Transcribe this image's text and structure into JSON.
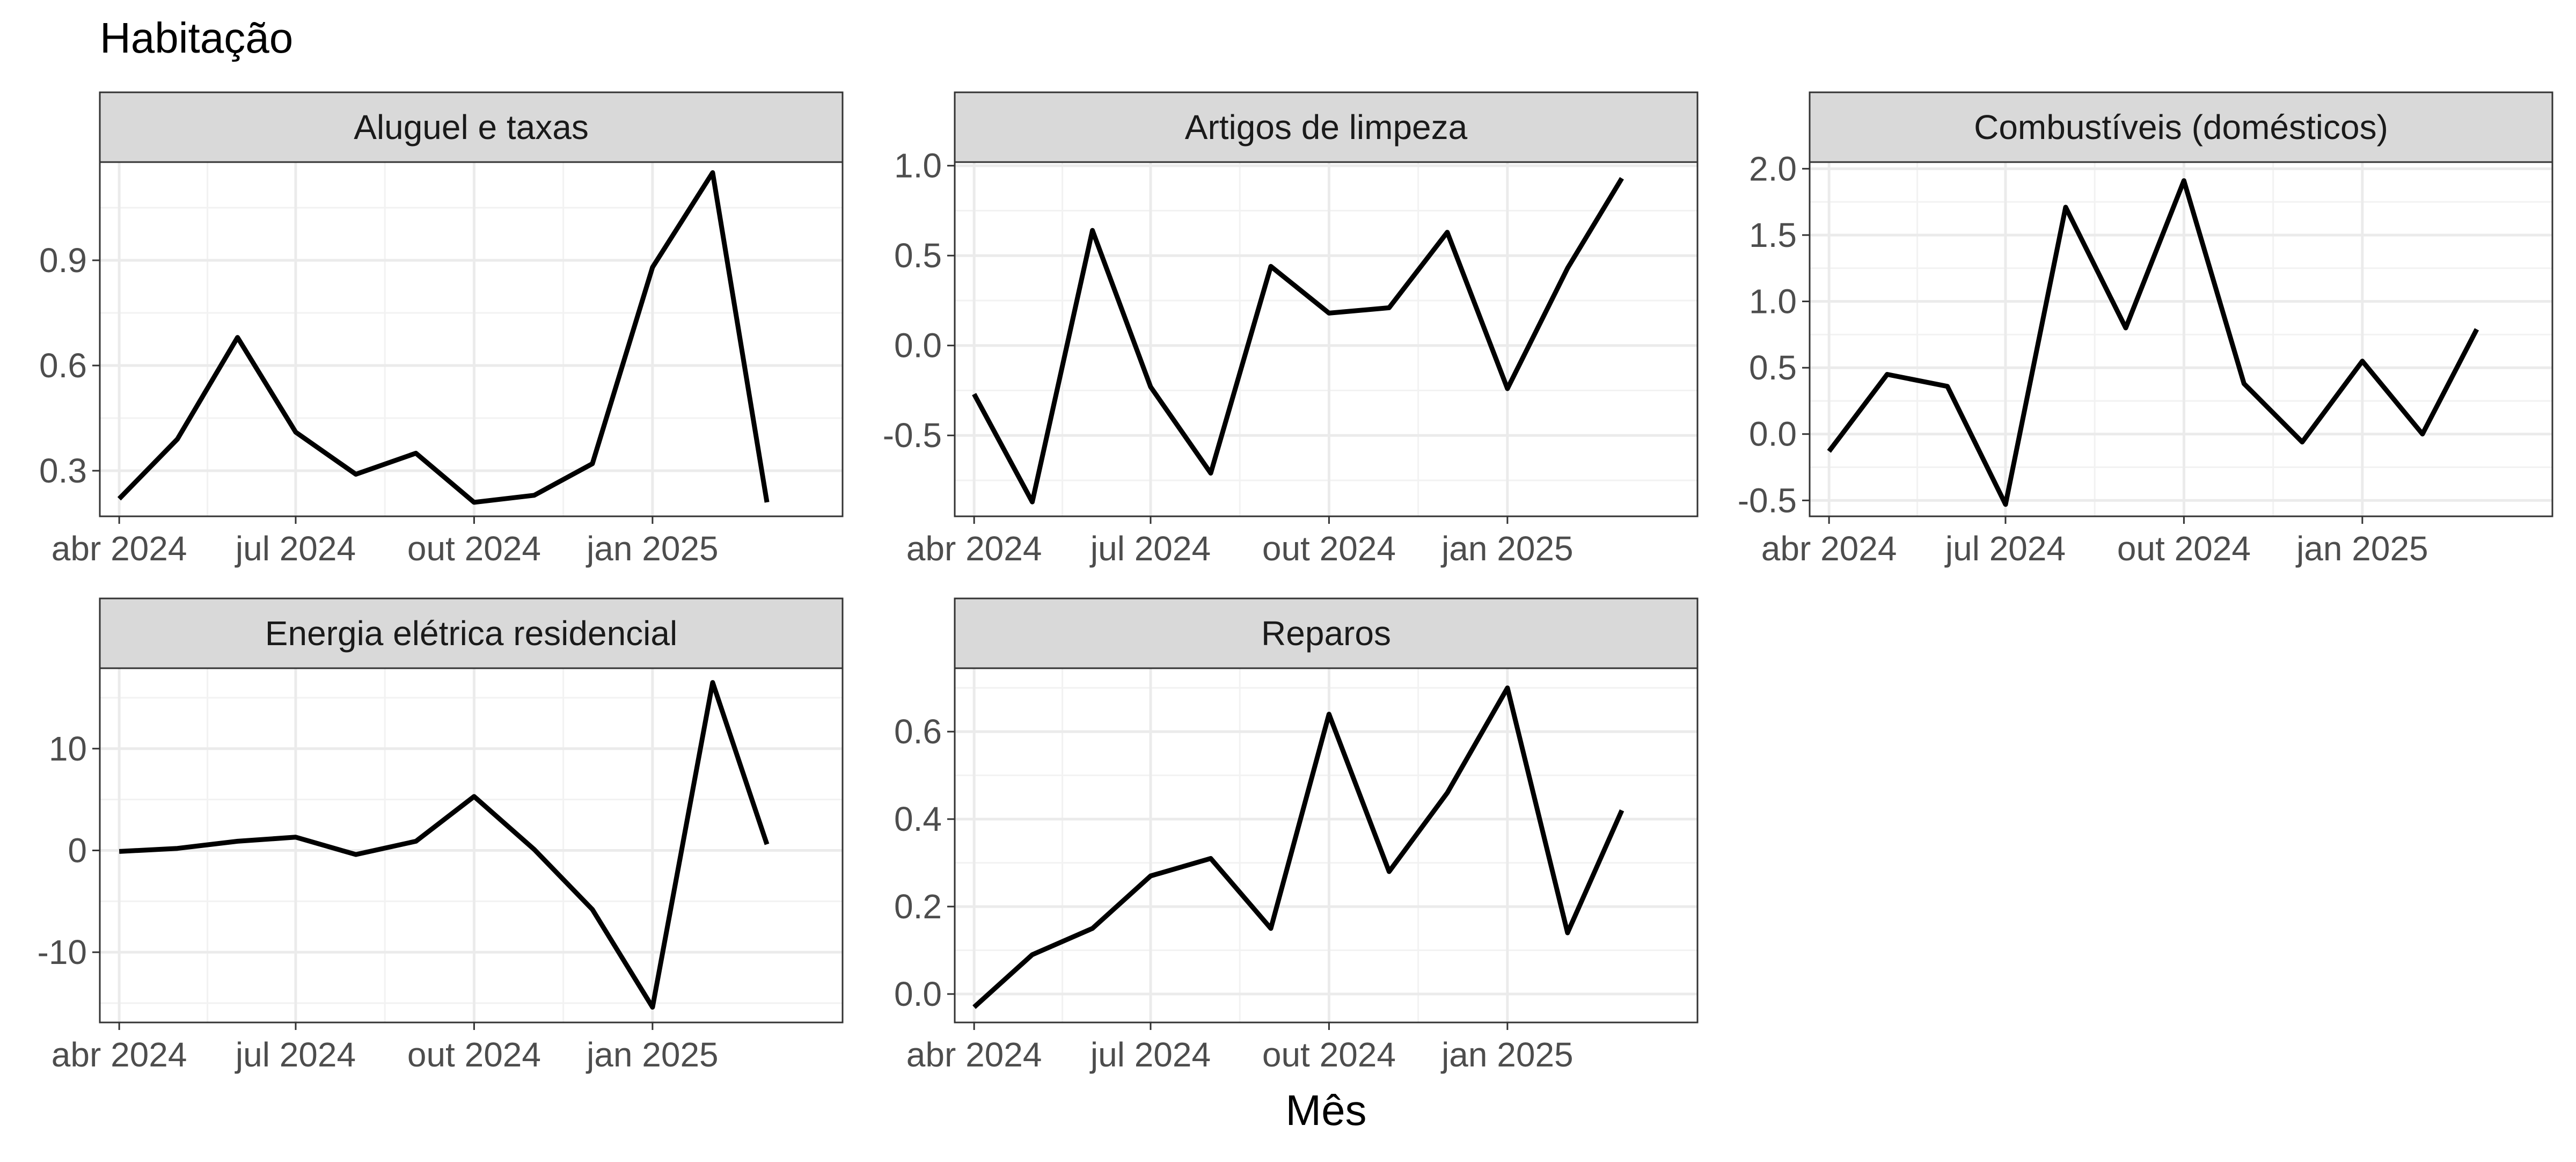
{
  "page": {
    "title": "Habitação",
    "xlabel": "Mês"
  },
  "chart_data": {
    "type": "line",
    "title": "Habitação",
    "xlabel": "Mês",
    "ylabel": "",
    "x": [
      "2024-04",
      "2024-05",
      "2024-06",
      "2024-07",
      "2024-08",
      "2024-09",
      "2024-10",
      "2024-11",
      "2024-12",
      "2025-01",
      "2025-02",
      "2025-03"
    ],
    "x_ticks": [
      "2024-04",
      "2024-07",
      "2024-10",
      "2025-01"
    ],
    "x_tick_labels": [
      "abr 2024",
      "jul 2024",
      "out 2024",
      "jan 2025"
    ],
    "x_range": [
      "2024-03-22",
      "2025-04-09"
    ],
    "grid": true,
    "line_color": "#000000",
    "panels": [
      {
        "name": "Aluguel e taxas",
        "ylim": [
          0.17,
          1.18
        ],
        "yticks": [
          0.3,
          0.6,
          0.9
        ],
        "ytick_labels": [
          "0.3",
          "0.6",
          "0.9"
        ],
        "values": [
          0.22,
          0.39,
          0.68,
          0.41,
          0.29,
          0.35,
          0.21,
          0.23,
          0.32,
          0.88,
          1.15,
          0.21
        ]
      },
      {
        "name": "Artigos de limpeza",
        "ylim": [
          -0.95,
          1.02
        ],
        "yticks": [
          -0.5,
          0.0,
          0.5,
          1.0
        ],
        "ytick_labels": [
          "-0.5",
          "0.0",
          "0.5",
          "1.0"
        ],
        "values": [
          -0.27,
          -0.87,
          0.64,
          -0.23,
          -0.71,
          0.44,
          0.18,
          0.21,
          0.63,
          -0.24,
          0.43,
          0.93
        ]
      },
      {
        "name": "Combustíveis (domésticos)",
        "ylim": [
          -0.62,
          2.05
        ],
        "yticks": [
          -0.5,
          0.0,
          0.5,
          1.0,
          1.5,
          2.0
        ],
        "ytick_labels": [
          "-0.5",
          "0.0",
          "0.5",
          "1.0",
          "1.5",
          "2.0"
        ],
        "values": [
          -0.13,
          0.45,
          0.36,
          -0.53,
          1.71,
          0.8,
          1.91,
          0.38,
          -0.06,
          0.55,
          0.0,
          0.79
        ]
      },
      {
        "name": "Energia elétrica residencial",
        "ylim": [
          -16.9,
          17.9
        ],
        "yticks": [
          -10,
          0,
          10
        ],
        "ytick_labels": [
          "-10",
          "0",
          "10"
        ],
        "values": [
          -0.1,
          0.2,
          0.9,
          1.3,
          -0.4,
          0.9,
          5.3,
          0.1,
          -5.8,
          -15.4,
          16.5,
          0.6
        ]
      },
      {
        "name": "Reparos",
        "ylim": [
          -0.065,
          0.745
        ],
        "yticks": [
          0.0,
          0.2,
          0.4,
          0.6
        ],
        "ytick_labels": [
          "0.0",
          "0.2",
          "0.4",
          "0.6"
        ],
        "values": [
          -0.03,
          0.09,
          0.15,
          0.27,
          0.31,
          0.15,
          0.64,
          0.28,
          0.46,
          0.7,
          0.14,
          0.42
        ]
      }
    ]
  }
}
